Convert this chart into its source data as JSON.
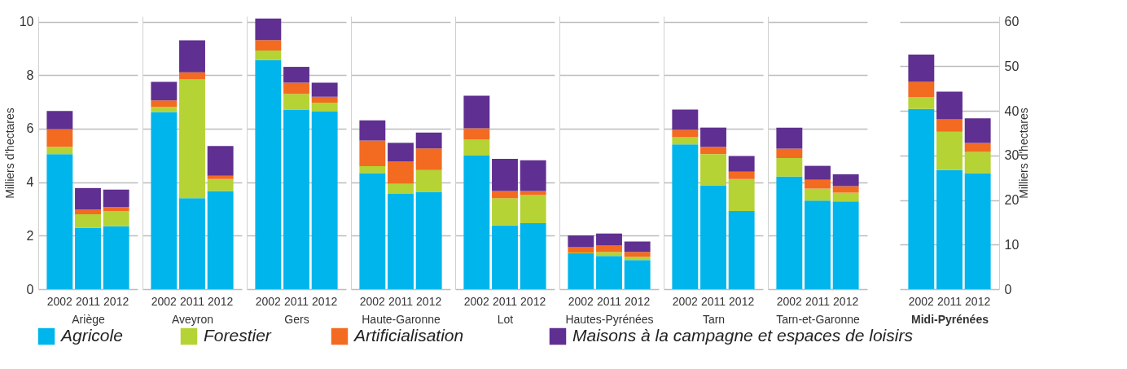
{
  "chart_data": [
    {
      "type": "bar",
      "stacked": true,
      "xlabel": "Ariège",
      "ylabel": "Milliers d'hectares",
      "categories": [
        "2002",
        "2011",
        "2012"
      ],
      "ylim": [
        0,
        10.2
      ],
      "yticks": [
        0,
        2,
        4,
        6,
        8,
        10
      ],
      "grid": "y",
      "legend": "bottom",
      "series": [
        {
          "name": "Agricole",
          "color": "#00b5eb",
          "values": [
            5.05,
            2.29,
            2.35
          ]
        },
        {
          "name": "Forestier",
          "color": "#b5d334",
          "values": [
            0.27,
            0.51,
            0.57
          ]
        },
        {
          "name": "Artificialisation",
          "color": "#f26b21",
          "values": [
            0.66,
            0.18,
            0.15
          ]
        },
        {
          "name": "Maisons à la campagne et espaces de loisirs",
          "color": "#5f2f91",
          "values": [
            0.68,
            0.8,
            0.65
          ]
        }
      ]
    },
    {
      "type": "bar",
      "stacked": true,
      "xlabel": "Aveyron",
      "categories": [
        "2002",
        "2011",
        "2012"
      ],
      "ylim": [
        0,
        10.2
      ],
      "yticks": [
        0,
        2,
        4,
        6,
        8,
        10
      ],
      "grid": "y",
      "tick_labels": "x",
      "series": [
        {
          "color": "#00b5eb",
          "values": [
            6.62,
            3.4,
            3.67
          ]
        },
        {
          "color": "#b5d334",
          "values": [
            0.2,
            4.44,
            0.45
          ]
        },
        {
          "color": "#f26b21",
          "values": [
            0.24,
            0.27,
            0.12
          ]
        },
        {
          "color": "#5f2f91",
          "values": [
            0.69,
            1.19,
            1.11
          ]
        }
      ]
    },
    {
      "type": "bar",
      "stacked": true,
      "xlabel": "Gers",
      "categories": [
        "2002",
        "2011",
        "2012"
      ],
      "ylim": [
        0,
        10.2
      ],
      "yticks": [
        0,
        2,
        4,
        6,
        8,
        10
      ],
      "grid": "y",
      "tick_labels": "x",
      "series": [
        {
          "color": "#00b5eb",
          "values": [
            8.56,
            6.7,
            6.64
          ]
        },
        {
          "color": "#b5d334",
          "values": [
            0.36,
            0.6,
            0.33
          ]
        },
        {
          "color": "#f26b21",
          "values": [
            0.39,
            0.42,
            0.22
          ]
        },
        {
          "color": "#5f2f91",
          "values": [
            0.81,
            0.59,
            0.53
          ]
        }
      ]
    },
    {
      "type": "bar",
      "stacked": true,
      "xlabel": "Haute-Garonne",
      "categories": [
        "2002",
        "2011",
        "2012"
      ],
      "ylim": [
        0,
        10.2
      ],
      "yticks": [
        0,
        2,
        4,
        6,
        8,
        10
      ],
      "grid": "y",
      "tick_labels": "x",
      "series": [
        {
          "color": "#00b5eb",
          "values": [
            4.34,
            3.56,
            3.64
          ]
        },
        {
          "color": "#b5d334",
          "values": [
            0.26,
            0.38,
            0.81
          ]
        },
        {
          "color": "#f26b21",
          "values": [
            0.96,
            0.84,
            0.81
          ]
        },
        {
          "color": "#5f2f91",
          "values": [
            0.75,
            0.69,
            0.59
          ]
        }
      ]
    },
    {
      "type": "bar",
      "stacked": true,
      "xlabel": "Lot",
      "categories": [
        "2002",
        "2011",
        "2012"
      ],
      "ylim": [
        0,
        10.2
      ],
      "yticks": [
        0,
        2,
        4,
        6,
        8,
        10
      ],
      "grid": "y",
      "tick_labels": "x",
      "series": [
        {
          "color": "#00b5eb",
          "values": [
            4.99,
            2.38,
            2.47
          ]
        },
        {
          "color": "#b5d334",
          "values": [
            0.6,
            1.02,
            1.05
          ]
        },
        {
          "color": "#f26b21",
          "values": [
            0.42,
            0.27,
            0.15
          ]
        },
        {
          "color": "#5f2f91",
          "values": [
            1.22,
            1.2,
            1.15
          ]
        }
      ]
    },
    {
      "type": "bar",
      "stacked": true,
      "xlabel": "Hautes-Pyrénées",
      "categories": [
        "2002",
        "2011",
        "2012"
      ],
      "ylim": [
        0,
        10.2
      ],
      "yticks": [
        0,
        2,
        4,
        6,
        8,
        10
      ],
      "grid": "y",
      "tick_labels": "x",
      "series": [
        {
          "color": "#00b5eb",
          "values": [
            1.34,
            1.24,
            1.09
          ]
        },
        {
          "color": "#b5d334",
          "values": [
            0.03,
            0.15,
            0.12
          ]
        },
        {
          "color": "#f26b21",
          "values": [
            0.2,
            0.24,
            0.18
          ]
        },
        {
          "color": "#5f2f91",
          "values": [
            0.44,
            0.45,
            0.39
          ]
        }
      ]
    },
    {
      "type": "bar",
      "stacked": true,
      "xlabel": "Tarn",
      "categories": [
        "2002",
        "2011",
        "2012"
      ],
      "ylim": [
        0,
        10.2
      ],
      "yticks": [
        0,
        2,
        4,
        6,
        8,
        10
      ],
      "grid": "y",
      "tick_labels": "x",
      "series": [
        {
          "color": "#00b5eb",
          "values": [
            5.41,
            3.88,
            2.92
          ]
        },
        {
          "color": "#b5d334",
          "values": [
            0.27,
            1.17,
            1.2
          ]
        },
        {
          "color": "#f26b21",
          "values": [
            0.28,
            0.27,
            0.27
          ]
        },
        {
          "color": "#5f2f91",
          "values": [
            0.75,
            0.72,
            0.59
          ]
        }
      ]
    },
    {
      "type": "bar",
      "stacked": true,
      "xlabel": "Tarn-et-Garonne",
      "categories": [
        "2002",
        "2011",
        "2012"
      ],
      "ylim": [
        0,
        10.2
      ],
      "yticks": [
        0,
        2,
        4,
        6,
        8,
        10
      ],
      "grid": "y",
      "tick_labels": "x",
      "series": [
        {
          "color": "#00b5eb",
          "values": [
            4.21,
            3.31,
            3.28
          ]
        },
        {
          "color": "#b5d334",
          "values": [
            0.69,
            0.45,
            0.33
          ]
        },
        {
          "color": "#f26b21",
          "values": [
            0.35,
            0.33,
            0.24
          ]
        },
        {
          "color": "#5f2f91",
          "values": [
            0.79,
            0.52,
            0.44
          ]
        }
      ]
    },
    {
      "type": "bar",
      "stacked": true,
      "xlabel": "Midi-Pyrénées",
      "y2label": "Milliers d'hectares",
      "categories": [
        "2002",
        "2011",
        "2012"
      ],
      "y2lim": [
        0,
        61.2
      ],
      "y2ticks": [
        0,
        10,
        20,
        30,
        40,
        50,
        60
      ],
      "grid": "y",
      "series": [
        {
          "color": "#00b5eb",
          "axis": "y2",
          "values": [
            40.4,
            26.7,
            26.0
          ]
        },
        {
          "color": "#b5d334",
          "axis": "y2",
          "values": [
            2.7,
            8.6,
            4.8
          ]
        },
        {
          "color": "#f26b21",
          "axis": "y2",
          "values": [
            3.4,
            2.8,
            2.0
          ]
        },
        {
          "color": "#5f2f91",
          "axis": "y2",
          "values": [
            6.1,
            6.2,
            5.5
          ]
        }
      ]
    }
  ]
}
